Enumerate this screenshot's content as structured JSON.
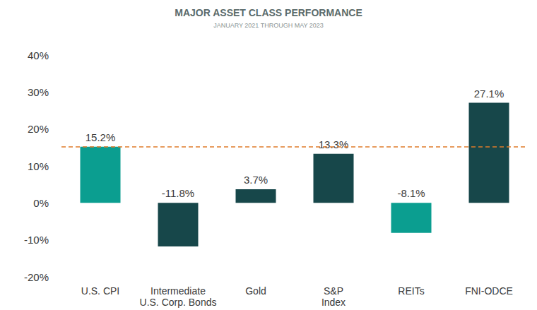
{
  "chart_data": {
    "type": "bar",
    "title": "MAJOR ASSET CLASS PERFORMANCE",
    "subtitle": "JANUARY 2021 THROUGH MAY 2023",
    "categories": [
      "U.S. CPI",
      "Intermediate\nU.S. Corp. Bonds",
      "Gold",
      "S&P\nIndex",
      "REITs",
      "FNI-ODCE"
    ],
    "values": [
      15.2,
      -11.8,
      3.7,
      13.3,
      -8.1,
      27.1
    ],
    "value_labels": [
      "15.2%",
      "-11.8%",
      "3.7%",
      "13.3%",
      "-8.1%",
      "27.1%"
    ],
    "colors": [
      "#0b9e90",
      "#17474a",
      "#17474a",
      "#17474a",
      "#0b9e90",
      "#17474a"
    ],
    "reference_line": 15.2,
    "ylim": [
      -20,
      40
    ],
    "yticks": [
      {
        "value": -20,
        "label": "-20%"
      },
      {
        "value": -10,
        "label": "-10%"
      },
      {
        "value": 0,
        "label": "0%"
      },
      {
        "value": 10,
        "label": "10%"
      },
      {
        "value": 20,
        "label": "20%"
      },
      {
        "value": 30,
        "label": "30%"
      },
      {
        "value": 40,
        "label": "40%"
      }
    ],
    "grid": false,
    "data_labels": true
  }
}
